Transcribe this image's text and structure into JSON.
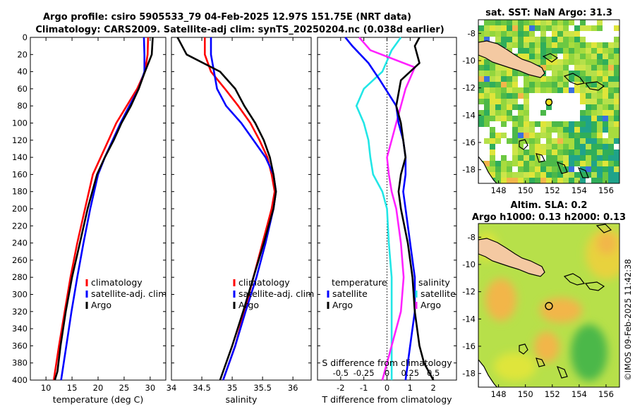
{
  "figure": {
    "title_line1": "Argo profile: csiro 5905533_79 04-Feb-2025 12.97S 151.75E (NRT data)",
    "title_line2": "Climatology: CARS2009. Satellite-adj clim: synTS_20250204.nc (0.038d earlier)",
    "credit": "©IMOS 09-Feb-2025 11:42:38"
  },
  "colors": {
    "argo": "#000000",
    "climatology": "#ff0000",
    "satellite": "#0000ff",
    "sal_sat": "#22e6e6",
    "sal_clim": "#ff22ff",
    "land": "#f4c9a2"
  },
  "chart_data": [
    {
      "id": "temperature",
      "type": "line",
      "xlabel": "temperature (deg C)",
      "ylabel": "",
      "xlim": [
        7,
        33
      ],
      "ylim": [
        400,
        0
      ],
      "xticks": [
        "10",
        "15",
        "20",
        "25",
        "30"
      ],
      "yticks": [
        "0",
        "20",
        "40",
        "60",
        "80",
        "100",
        "120",
        "140",
        "160",
        "180",
        "200",
        "220",
        "240",
        "260",
        "280",
        "300",
        "320",
        "340",
        "360",
        "380",
        "400"
      ],
      "legend": [
        "climatology",
        "satellite-adj. clim",
        "Argo"
      ],
      "series": [
        {
          "name": "climatology",
          "color": "red",
          "x": [
            29.6,
            29.5,
            29.0,
            27.5,
            25.5,
            23.5,
            22.0,
            20.5,
            19.0,
            17.5,
            16.0,
            14.7,
            13.6,
            12.5,
            11.5
          ],
          "y": [
            0,
            20,
            40,
            60,
            80,
            100,
            120,
            140,
            160,
            200,
            240,
            280,
            320,
            360,
            400
          ]
        },
        {
          "name": "satellite-adj. clim",
          "color": "blue",
          "x": [
            28.8,
            28.9,
            28.9,
            27.8,
            26.0,
            24.3,
            22.8,
            21.3,
            20.0,
            18.5,
            17.2,
            16.0,
            14.9,
            13.9,
            12.9
          ],
          "y": [
            0,
            20,
            40,
            60,
            80,
            100,
            120,
            140,
            160,
            200,
            240,
            280,
            320,
            360,
            400
          ]
        },
        {
          "name": "Argo",
          "color": "black",
          "x": [
            30.5,
            30.3,
            29.0,
            27.8,
            26.3,
            24.5,
            23.0,
            21.3,
            19.8,
            18.0,
            16.5,
            15.0,
            13.8,
            12.8,
            12.2,
            11.7
          ],
          "y": [
            0,
            20,
            40,
            60,
            80,
            100,
            120,
            140,
            160,
            200,
            240,
            280,
            320,
            360,
            390,
            400
          ]
        }
      ]
    },
    {
      "id": "salinity",
      "type": "line",
      "xlabel": "salinity",
      "ylabel": "",
      "xlim": [
        34,
        36.3
      ],
      "ylim": [
        400,
        0
      ],
      "xticks": [
        "34",
        "34.5",
        "35",
        "35.5",
        "36"
      ],
      "legend": [
        "climatology",
        "satellite-adj. clim",
        "Argo"
      ],
      "series": [
        {
          "name": "climatology",
          "color": "red",
          "x": [
            34.55,
            34.55,
            34.65,
            34.88,
            35.1,
            35.3,
            35.45,
            35.58,
            35.65,
            35.7,
            35.65,
            35.5,
            35.35,
            35.2,
            35.05,
            34.95,
            34.85
          ],
          "y": [
            0,
            20,
            40,
            60,
            80,
            100,
            120,
            140,
            160,
            180,
            200,
            240,
            280,
            320,
            360,
            380,
            400
          ]
        },
        {
          "name": "satellite-adj. clim",
          "color": "blue",
          "x": [
            34.65,
            34.65,
            34.7,
            34.75,
            34.9,
            35.15,
            35.35,
            35.55,
            35.68,
            35.72,
            35.68,
            35.55,
            35.4,
            35.22,
            35.05,
            34.95,
            34.85
          ],
          "y": [
            0,
            20,
            40,
            60,
            80,
            100,
            120,
            140,
            160,
            180,
            200,
            240,
            280,
            320,
            360,
            380,
            400
          ]
        },
        {
          "name": "Argo",
          "color": "black",
          "x": [
            34.1,
            34.25,
            34.8,
            35.05,
            35.2,
            35.38,
            35.52,
            35.62,
            35.68,
            35.72,
            35.68,
            35.52,
            35.35,
            35.18,
            35.0,
            34.9,
            34.8
          ],
          "y": [
            0,
            20,
            40,
            60,
            80,
            100,
            120,
            140,
            160,
            180,
            200,
            240,
            280,
            320,
            360,
            380,
            400
          ]
        }
      ]
    },
    {
      "id": "differences",
      "type": "line",
      "xlabel": "T difference from climatology",
      "ylabel": "",
      "xlim": [
        -3,
        3
      ],
      "ylim": [
        400,
        0
      ],
      "xticks": [
        "-2",
        "-1",
        "0",
        "1",
        "2"
      ],
      "top_axis_label": "S difference from climatology",
      "top_ticks": [
        "-0.5",
        "-0.25",
        "0",
        "0.25",
        "0.5"
      ],
      "legend_left_title": "temperature",
      "legend_right_title": "salinity",
      "legend_left": [
        "satellite",
        "Argo"
      ],
      "legend_right": [
        "satellite",
        "Argo"
      ],
      "series": [
        {
          "name": "T satellite",
          "color": "blue",
          "x": [
            -1.8,
            -1.5,
            -0.8,
            -0.3,
            0.4,
            0.5,
            0.7,
            0.8,
            0.8,
            0.7,
            0.8,
            1.0,
            1.2,
            1.2,
            1.0,
            0.8
          ],
          "y": [
            0,
            10,
            30,
            50,
            80,
            100,
            120,
            140,
            160,
            180,
            200,
            240,
            280,
            320,
            360,
            400
          ]
        },
        {
          "name": "T Argo",
          "color": "black",
          "x": [
            1.4,
            1.2,
            1.4,
            0.6,
            0.4,
            0.6,
            0.7,
            0.8,
            0.6,
            0.5,
            0.6,
            0.9,
            1.1,
            1.2,
            1.4,
            1.6,
            2.0
          ],
          "y": [
            0,
            10,
            30,
            50,
            80,
            100,
            120,
            140,
            160,
            180,
            200,
            240,
            280,
            320,
            360,
            380,
            400
          ]
        },
        {
          "name": "S satellite",
          "color": "cyan",
          "x": [
            0.15,
            0.05,
            -0.05,
            -0.25,
            -0.33,
            -0.25,
            -0.2,
            -0.18,
            -0.15,
            -0.05,
            0.0,
            0.02,
            0.05,
            0.05,
            0.05,
            0.05
          ],
          "y": [
            0,
            15,
            40,
            60,
            80,
            100,
            120,
            140,
            160,
            180,
            200,
            240,
            280,
            320,
            360,
            400
          ]
        },
        {
          "name": "S Argo",
          "color": "magenta",
          "x": [
            -0.3,
            -0.18,
            0.3,
            0.2,
            0.15,
            0.1,
            0.05,
            0.0,
            0.02,
            0.05,
            0.1,
            0.15,
            0.18,
            0.15,
            0.05,
            -0.05
          ],
          "y": [
            0,
            15,
            35,
            60,
            80,
            100,
            120,
            140,
            160,
            180,
            200,
            240,
            280,
            320,
            360,
            400
          ]
        }
      ]
    },
    {
      "id": "sst_map",
      "type": "heatmap",
      "title": "sat. SST: NaN Argo: 31.3",
      "xlim": [
        146.5,
        157
      ],
      "ylim": [
        -19,
        -7
      ],
      "xticks": [
        "148",
        "150",
        "152",
        "154",
        "156"
      ],
      "yticks": [
        "-8",
        "-10",
        "-12",
        "-14",
        "-16",
        "-18"
      ],
      "marker": {
        "lon": 151.75,
        "lat": -12.97
      }
    },
    {
      "id": "sla_map",
      "type": "heatmap",
      "title": "Altim. SLA: 0.2",
      "subtitle": "Argo h1000: 0.13 h2000: 0.13",
      "xlim": [
        146.5,
        157
      ],
      "ylim": [
        -19,
        -7
      ],
      "xticks": [
        "148",
        "150",
        "152",
        "154",
        "156"
      ],
      "yticks": [
        "-8",
        "-10",
        "-12",
        "-14",
        "-16",
        "-18"
      ],
      "marker": {
        "lon": 151.75,
        "lat": -12.97
      }
    }
  ]
}
